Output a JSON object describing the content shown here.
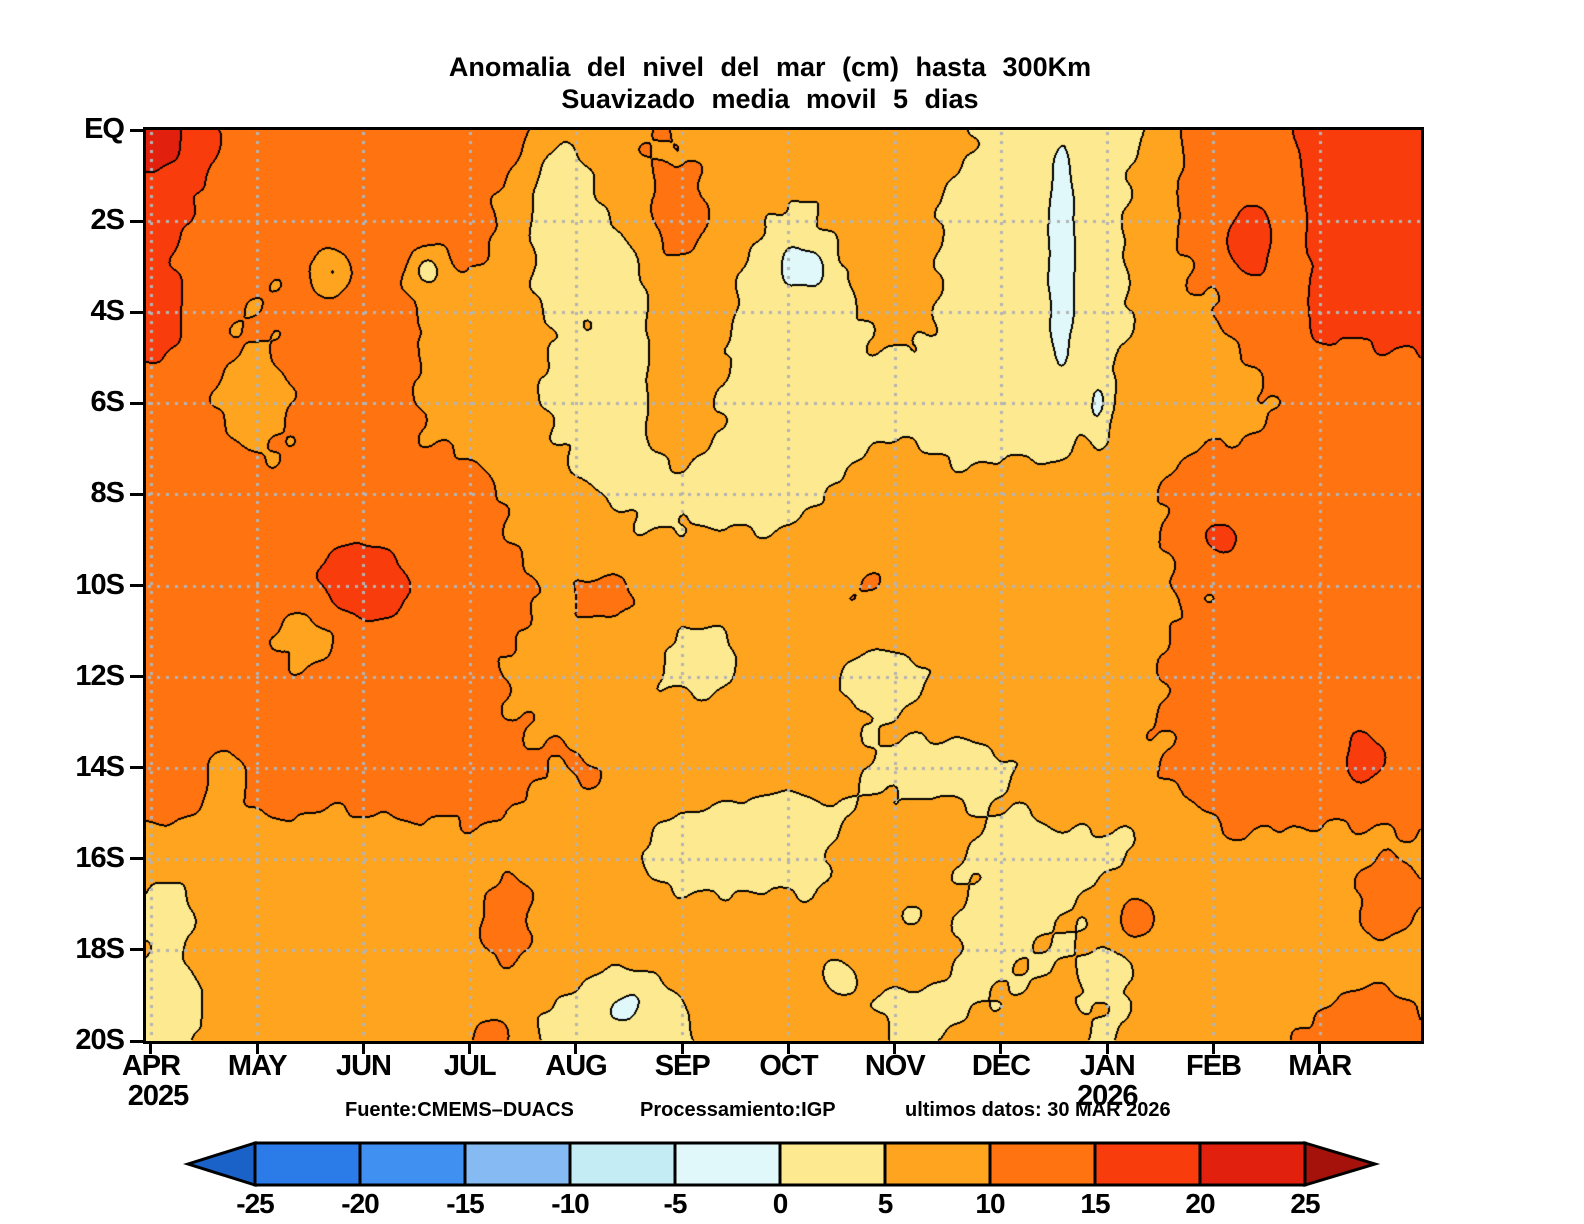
{
  "title": {
    "line1": "Anomalia del nivel del mar (cm) hasta 300Km",
    "line2": "Suavizado media movil 5 dias"
  },
  "y_axis": {
    "labels": [
      "EQ",
      "2S",
      "4S",
      "6S",
      "8S",
      "10S",
      "12S",
      "14S",
      "16S",
      "18S",
      "20S"
    ]
  },
  "x_axis": {
    "months": [
      "APR",
      "MAY",
      "JUN",
      "JUL",
      "AUG",
      "SEP",
      "OCT",
      "NOV",
      "DEC",
      "JAN",
      "FEB",
      "MAR"
    ],
    "year_start": "2025",
    "year_mid": "2026"
  },
  "footer": {
    "source": "Fuente:CMEMS–DUACS",
    "processing": "Processamiento:IGP",
    "latest": "ultimos datos:  30 MAR 2026"
  },
  "colorbar": {
    "tick_labels": [
      "-25",
      "-20",
      "-15",
      "-10",
      "-5",
      "0",
      "5",
      "10",
      "15",
      "20",
      "25"
    ],
    "segment_colors": [
      "#2b7ce8",
      "#3f90f0",
      "#85bbf2",
      "#c3ecf4",
      "#e0f8fa",
      "#fde98f",
      "#ffa41e",
      "#ff7310",
      "#f93c0c",
      "#e1210e"
    ],
    "arrow_left_color": "#1a62c8",
    "arrow_right_color": "#a5120b"
  },
  "chart_data": {
    "type": "heatmap",
    "title": "Anomalia del nivel del mar (cm) hasta 300Km — Suavizado media movil 5 dias",
    "unit": "cm",
    "x_months": [
      "APR 2025",
      "MAY",
      "JUN",
      "JUL",
      "AUG",
      "SEP",
      "OCT",
      "NOV",
      "DEC",
      "JAN 2026",
      "FEB",
      "MAR"
    ],
    "y_lat_deg_south": [
      0,
      2,
      4,
      6,
      8,
      10,
      12,
      14,
      16,
      18,
      20
    ],
    "levels": [
      -25,
      -20,
      -15,
      -10,
      -5,
      0,
      5,
      10,
      15,
      20,
      25
    ],
    "palette": {
      "under": "#1a62c8",
      "bins": [
        "#2b7ce8",
        "#3f90f0",
        "#85bbf2",
        "#c3ecf4",
        "#e0f8fa",
        "#fde98f",
        "#ffa41e",
        "#ff7310",
        "#f93c0c",
        "#e1210e"
      ],
      "over": "#a5120b",
      "contour_line": "#000000",
      "gridline_dots": "#b4b4b4"
    },
    "grid_note": "rows = latitude 0S..20S step 2; cols = month boundaries APR..MAR plus right edge; values in cm",
    "grid": [
      [
        18,
        13,
        12,
        13,
        11,
        10,
        7,
        9,
        4,
        3,
        11,
        16,
        18
      ],
      [
        16,
        11,
        12,
        11,
        8,
        11,
        5,
        8,
        2,
        4,
        12,
        17,
        17
      ],
      [
        17,
        10,
        12,
        9,
        6,
        8,
        4,
        7,
        2,
        4,
        10,
        16,
        16
      ],
      [
        13,
        9,
        12,
        8,
        4,
        7,
        3,
        4,
        2,
        6,
        8,
        12,
        13
      ],
      [
        12,
        11,
        12,
        11,
        7,
        4,
        4,
        7,
        6,
        7,
        12,
        13,
        13
      ],
      [
        12,
        12,
        14,
        12,
        9,
        7,
        8,
        10,
        7,
        8,
        10,
        12,
        12
      ],
      [
        12,
        11,
        11,
        11,
        8,
        5,
        8,
        6,
        8,
        8,
        12,
        13,
        12
      ],
      [
        13,
        12,
        12,
        12,
        10,
        8,
        7,
        5,
        6,
        8,
        11,
        12,
        12
      ],
      [
        8,
        8,
        8,
        9,
        8,
        4,
        4,
        8,
        4,
        4,
        8,
        9,
        9
      ],
      [
        6,
        8,
        8,
        8,
        7,
        8,
        7,
        8,
        4,
        6,
        8,
        8,
        8
      ],
      [
        5,
        8,
        8,
        9,
        4,
        5,
        7,
        5,
        7,
        5,
        8,
        10,
        10
      ]
    ],
    "bumps": [
      {
        "m": 0.1,
        "lat": 0.3,
        "amp": 4,
        "rx": 0.5,
        "ry": 1.2
      },
      {
        "m": 0.2,
        "lat": 17.0,
        "amp": -4,
        "rx": 0.35,
        "ry": 0.9
      },
      {
        "m": 0.25,
        "lat": 19.2,
        "amp": -4,
        "rx": 0.3,
        "ry": 0.8
      },
      {
        "m": 0.75,
        "lat": 14.2,
        "amp": -6,
        "rx": 0.18,
        "ry": 0.6
      },
      {
        "m": 1.55,
        "lat": 10.9,
        "amp": -4,
        "rx": 0.35,
        "ry": 0.8
      },
      {
        "m": 2.0,
        "lat": 10.0,
        "amp": 5,
        "rx": 0.45,
        "ry": 0.9
      },
      {
        "m": 1.75,
        "lat": 3.1,
        "amp": -7,
        "rx": 0.16,
        "ry": 0.45
      },
      {
        "m": 2.65,
        "lat": 3.1,
        "amp": -7,
        "rx": 0.16,
        "ry": 0.45
      },
      {
        "m": 3.4,
        "lat": 17.5,
        "amp": 4,
        "rx": 0.3,
        "ry": 1.1
      },
      {
        "m": 3.3,
        "lat": 19.9,
        "amp": 4,
        "rx": 0.2,
        "ry": 0.4
      },
      {
        "m": 3.9,
        "lat": 1.5,
        "amp": -8,
        "rx": 0.35,
        "ry": 2.0
      },
      {
        "m": 4.5,
        "lat": 4.0,
        "amp": -5,
        "rx": 0.25,
        "ry": 3.0
      },
      {
        "m": 4.25,
        "lat": 7.3,
        "amp": -3,
        "rx": 0.3,
        "ry": 0.6
      },
      {
        "m": 4.35,
        "lat": 10.3,
        "amp": 3,
        "rx": 0.4,
        "ry": 0.6
      },
      {
        "m": 4.55,
        "lat": 19.2,
        "amp": -6,
        "rx": 0.4,
        "ry": 0.8
      },
      {
        "m": 5.05,
        "lat": 1.8,
        "amp": 4,
        "rx": 0.15,
        "ry": 0.5
      },
      {
        "m": 5.3,
        "lat": 11.5,
        "amp": -3,
        "rx": 0.35,
        "ry": 0.7
      },
      {
        "m": 5.9,
        "lat": 15.2,
        "amp": -3,
        "rx": 0.8,
        "ry": 0.7
      },
      {
        "m": 6.2,
        "lat": 4.5,
        "amp": -2,
        "rx": 0.8,
        "ry": 2.5
      },
      {
        "m": 6.08,
        "lat": 2.9,
        "amp": -7,
        "rx": 0.13,
        "ry": 0.45
      },
      {
        "m": 6.28,
        "lat": 3.05,
        "amp": -7,
        "rx": 0.13,
        "ry": 0.45
      },
      {
        "m": 6.5,
        "lat": 18.5,
        "amp": -3,
        "rx": 0.25,
        "ry": 0.6
      },
      {
        "m": 6.75,
        "lat": 19.8,
        "amp": 4,
        "rx": 0.25,
        "ry": 0.5
      },
      {
        "m": 6.9,
        "lat": 12.0,
        "amp": -4,
        "rx": 0.4,
        "ry": 0.7
      },
      {
        "m": 7.15,
        "lat": 17.2,
        "amp": -3,
        "rx": 0.2,
        "ry": 0.5
      },
      {
        "m": 7.3,
        "lat": 19.3,
        "amp": -3,
        "rx": 0.5,
        "ry": 0.7
      },
      {
        "m": 7.6,
        "lat": 14.0,
        "amp": -3,
        "rx": 0.5,
        "ry": 0.6
      },
      {
        "m": 8.62,
        "lat": 3.0,
        "amp": -7,
        "rx": 0.14,
        "ry": 3.2
      },
      {
        "m": 8.95,
        "lat": 6.0,
        "amp": -7,
        "rx": 0.12,
        "ry": 0.8
      },
      {
        "m": 9.15,
        "lat": 18.3,
        "amp": -3,
        "rx": 0.3,
        "ry": 0.7
      },
      {
        "m": 9.3,
        "lat": 17.3,
        "amp": 6,
        "rx": 0.25,
        "ry": 0.8
      },
      {
        "m": 10.1,
        "lat": 9.0,
        "amp": 5,
        "rx": 0.3,
        "ry": 0.7
      },
      {
        "m": 10.35,
        "lat": 2.5,
        "amp": 5,
        "rx": 0.22,
        "ry": 0.8
      },
      {
        "m": 10.3,
        "lat": 14.5,
        "amp": 3,
        "rx": 0.22,
        "ry": 1.5
      },
      {
        "m": 10.75,
        "lat": 2.5,
        "amp": -4,
        "rx": 0.18,
        "ry": 2.5
      },
      {
        "m": 11.2,
        "lat": 0.2,
        "amp": 4,
        "rx": 0.3,
        "ry": 0.6
      },
      {
        "m": 11.45,
        "lat": 13.8,
        "amp": 4,
        "rx": 0.3,
        "ry": 0.9
      },
      {
        "m": 11.7,
        "lat": 17.0,
        "amp": 4,
        "rx": 0.3,
        "ry": 0.9
      },
      {
        "m": 11.5,
        "lat": 19.5,
        "amp": 4,
        "rx": 0.35,
        "ry": 0.6
      }
    ]
  }
}
